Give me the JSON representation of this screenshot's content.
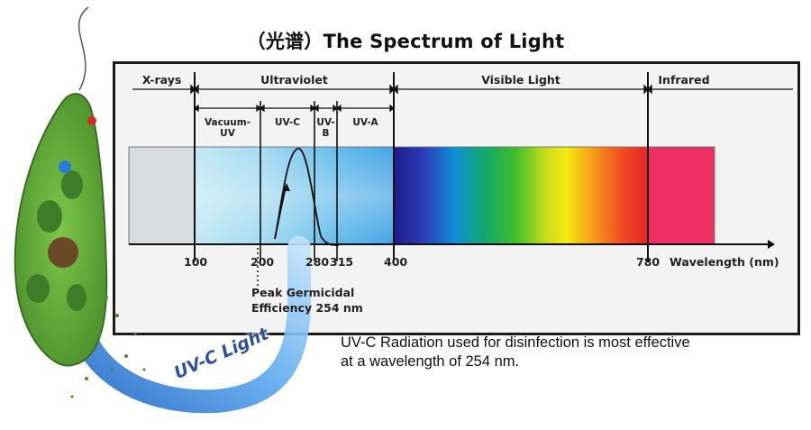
{
  "title": "（光谱）The Spectrum of Light",
  "regions": {
    "xrays": "X-rays",
    "ultraviolet": "Ultraviolet",
    "visible": "Visible Light",
    "infrared": "Infrared"
  },
  "uv_subregions": {
    "vacuum": "Vacuum-\nUV",
    "uvc": "UV-C",
    "uvb": "UV-\nB",
    "uva": "UV-A"
  },
  "ticks": [
    "100",
    "200",
    "280",
    "315",
    "400",
    "780"
  ],
  "axis_label": "Wavelength (nm)",
  "peak_note": "Peak Germicidal\nEfficiency 254 nm",
  "caption": "UV-C Radiation used for disinfection is most effective\nat a wavelength of 254 nm.",
  "arrow_text": "UV-C Light",
  "colors": {
    "xray_band": "#d9dcdc",
    "infrared_band": "#ee2f63",
    "arrow_blue": "#3a74c9",
    "cell_green": "#66b13b"
  }
}
